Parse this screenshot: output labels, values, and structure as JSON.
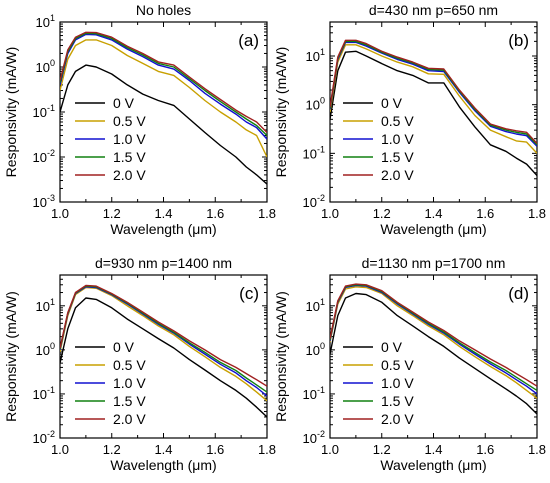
{
  "chart_data": [
    {
      "type": "line",
      "panel": "(a)",
      "title": "No holes",
      "xlabel": "Wavelength (μm)",
      "ylabel": "Responsivity (mA/W)",
      "xlim": [
        1.0,
        1.8
      ],
      "ylim": [
        0.001,
        10
      ],
      "yscale": "log",
      "xticks": [
        "1.0",
        "1.2",
        "1.4",
        "1.6",
        "1.8"
      ],
      "yticks": [
        {
          "mant": "10",
          "exp": "-3"
        },
        {
          "mant": "10",
          "exp": "-2"
        },
        {
          "mant": "10",
          "exp": "-1"
        },
        {
          "mant": "10",
          "exp": "0"
        },
        {
          "mant": "10",
          "exp": "1"
        }
      ],
      "legend": "left",
      "x": [
        1.0,
        1.03,
        1.06,
        1.1,
        1.14,
        1.2,
        1.26,
        1.32,
        1.38,
        1.44,
        1.5,
        1.56,
        1.62,
        1.68,
        1.72,
        1.76,
        1.8
      ],
      "series": [
        {
          "name": "0 V",
          "color": "#000000",
          "values": [
            0.1,
            0.4,
            0.8,
            1.1,
            1.0,
            0.7,
            0.4,
            0.25,
            0.18,
            0.14,
            0.07,
            0.035,
            0.018,
            0.01,
            0.006,
            0.004,
            0.0025
          ]
        },
        {
          "name": "0.5 V",
          "color": "#c8a000",
          "values": [
            0.3,
            1.5,
            3.0,
            4.0,
            4.0,
            3.0,
            1.8,
            1.2,
            0.8,
            0.65,
            0.35,
            0.18,
            0.1,
            0.06,
            0.04,
            0.03,
            0.01
          ]
        },
        {
          "name": "1.0 V",
          "color": "#1010d0",
          "values": [
            0.4,
            2.0,
            4.0,
            5.3,
            5.2,
            4.0,
            2.5,
            1.7,
            1.1,
            0.9,
            0.5,
            0.26,
            0.15,
            0.09,
            0.06,
            0.045,
            0.025
          ]
        },
        {
          "name": "1.5 V",
          "color": "#108010",
          "values": [
            0.45,
            2.2,
            4.3,
            5.6,
            5.5,
            4.3,
            2.7,
            1.85,
            1.2,
            1.0,
            0.55,
            0.3,
            0.17,
            0.1,
            0.07,
            0.05,
            0.03
          ]
        },
        {
          "name": "2.0 V",
          "color": "#a02020",
          "values": [
            0.5,
            2.4,
            4.6,
            5.9,
            5.8,
            4.6,
            2.9,
            2.0,
            1.3,
            1.1,
            0.6,
            0.33,
            0.19,
            0.11,
            0.08,
            0.06,
            0.035
          ]
        }
      ]
    },
    {
      "type": "line",
      "panel": "(b)",
      "title": "d=430 nm  p=650 nm",
      "xlabel": "Wavelength (μm)",
      "ylabel": "Responsivity (mA/W)",
      "xlim": [
        1.0,
        1.8
      ],
      "ylim": [
        0.01,
        50
      ],
      "yscale": "log",
      "xticks": [
        "1.0",
        "1.2",
        "1.4",
        "1.6",
        "1.8"
      ],
      "yticks": [
        {
          "mant": "10",
          "exp": "-2"
        },
        {
          "mant": "10",
          "exp": "-1"
        },
        {
          "mant": "10",
          "exp": "0"
        },
        {
          "mant": "10",
          "exp": "1"
        }
      ],
      "legend": "right",
      "x": [
        1.0,
        1.03,
        1.06,
        1.1,
        1.14,
        1.2,
        1.26,
        1.32,
        1.38,
        1.44,
        1.5,
        1.56,
        1.62,
        1.68,
        1.72,
        1.76,
        1.8
      ],
      "series": [
        {
          "name": "0 V",
          "color": "#000000",
          "values": [
            0.5,
            5.0,
            12.0,
            12.5,
            10.0,
            7.0,
            5.0,
            4.0,
            2.8,
            2.8,
            0.9,
            0.35,
            0.15,
            0.11,
            0.08,
            0.06,
            0.035
          ]
        },
        {
          "name": "0.5 V",
          "color": "#c8a000",
          "values": [
            0.7,
            7.5,
            17.0,
            17.0,
            14.0,
            10.0,
            7.5,
            6.0,
            4.3,
            4.2,
            1.5,
            0.6,
            0.3,
            0.22,
            0.18,
            0.17,
            0.1
          ]
        },
        {
          "name": "1.0 V",
          "color": "#1010d0",
          "values": [
            0.8,
            8.5,
            19.0,
            19.0,
            16.0,
            11.5,
            8.5,
            6.8,
            5.0,
            4.8,
            1.8,
            0.75,
            0.36,
            0.28,
            0.25,
            0.23,
            0.14
          ]
        },
        {
          "name": "1.5 V",
          "color": "#108010",
          "values": [
            0.85,
            9.0,
            20.0,
            20.0,
            17.0,
            12.0,
            9.0,
            7.2,
            5.3,
            5.1,
            1.9,
            0.8,
            0.38,
            0.3,
            0.27,
            0.25,
            0.15
          ]
        },
        {
          "name": "2.0 V",
          "color": "#a02020",
          "values": [
            0.9,
            9.5,
            21.0,
            21.0,
            18.0,
            12.5,
            9.5,
            7.5,
            5.6,
            5.4,
            2.0,
            0.85,
            0.4,
            0.32,
            0.29,
            0.27,
            0.16
          ]
        }
      ]
    },
    {
      "type": "line",
      "panel": "(c)",
      "title": "d=930 nm  p=1400 nm",
      "xlabel": "Wavelength (μm)",
      "ylabel": "Responsivity (mA/W)",
      "xlim": [
        1.0,
        1.8
      ],
      "ylim": [
        0.01,
        50
      ],
      "yscale": "log",
      "xticks": [
        "1.0",
        "1.2",
        "1.4",
        "1.6",
        "1.8"
      ],
      "yticks": [
        {
          "mant": "10",
          "exp": "-2"
        },
        {
          "mant": "10",
          "exp": "-1"
        },
        {
          "mant": "10",
          "exp": "0"
        },
        {
          "mant": "10",
          "exp": "1"
        }
      ],
      "legend": "right",
      "x": [
        1.0,
        1.03,
        1.06,
        1.1,
        1.14,
        1.2,
        1.26,
        1.32,
        1.38,
        1.44,
        1.5,
        1.56,
        1.62,
        1.68,
        1.72,
        1.76,
        1.8
      ],
      "series": [
        {
          "name": "0 V",
          "color": "#000000",
          "values": [
            0.5,
            3.0,
            9.0,
            15.0,
            14.0,
            9.0,
            5.0,
            3.0,
            1.8,
            1.1,
            0.6,
            0.35,
            0.2,
            0.12,
            0.08,
            0.05,
            0.03
          ]
        },
        {
          "name": "0.5 V",
          "color": "#c8a000",
          "values": [
            0.9,
            6.0,
            18.0,
            26.0,
            25.0,
            17.0,
            10.0,
            6.0,
            3.5,
            2.2,
            1.2,
            0.7,
            0.4,
            0.25,
            0.17,
            0.11,
            0.07
          ]
        },
        {
          "name": "1.0 V",
          "color": "#1010d0",
          "values": [
            1.0,
            6.5,
            19.0,
            27.0,
            26.0,
            18.0,
            11.0,
            6.5,
            3.8,
            2.4,
            1.35,
            0.8,
            0.47,
            0.3,
            0.2,
            0.14,
            0.09
          ]
        },
        {
          "name": "1.5 V",
          "color": "#108010",
          "values": [
            1.05,
            6.8,
            19.5,
            28.0,
            27.0,
            18.5,
            11.5,
            6.8,
            4.0,
            2.5,
            1.45,
            0.88,
            0.52,
            0.34,
            0.23,
            0.16,
            0.11
          ]
        },
        {
          "name": "2.0 V",
          "color": "#a02020",
          "values": [
            1.1,
            7.0,
            20.0,
            29.0,
            28.0,
            19.0,
            12.0,
            7.2,
            4.3,
            2.7,
            1.6,
            1.0,
            0.6,
            0.4,
            0.29,
            0.21,
            0.15
          ]
        }
      ]
    },
    {
      "type": "line",
      "panel": "(d)",
      "title": "d=1130 nm  p=1700 nm",
      "xlabel": "Wavelength (μm)",
      "ylabel": "Responsivity (mA/W)",
      "xlim": [
        1.0,
        1.8
      ],
      "ylim": [
        0.01,
        50
      ],
      "yscale": "log",
      "xticks": [
        "1.0",
        "1.2",
        "1.4",
        "1.6",
        "1.8"
      ],
      "yticks": [
        {
          "mant": "10",
          "exp": "-2"
        },
        {
          "mant": "10",
          "exp": "-1"
        },
        {
          "mant": "10",
          "exp": "0"
        },
        {
          "mant": "10",
          "exp": "1"
        }
      ],
      "legend": "right",
      "x": [
        1.0,
        1.03,
        1.06,
        1.1,
        1.14,
        1.2,
        1.26,
        1.32,
        1.38,
        1.44,
        1.5,
        1.56,
        1.62,
        1.68,
        1.72,
        1.76,
        1.8
      ],
      "series": [
        {
          "name": "0 V",
          "color": "#000000",
          "values": [
            0.8,
            6.0,
            15.0,
            19.0,
            18.0,
            12.0,
            6.0,
            3.5,
            2.0,
            1.2,
            0.65,
            0.38,
            0.22,
            0.13,
            0.09,
            0.06,
            0.035
          ]
        },
        {
          "name": "0.5 V",
          "color": "#c8a000",
          "values": [
            1.5,
            11.0,
            24.0,
            27.0,
            26.0,
            19.0,
            10.0,
            6.0,
            3.5,
            2.2,
            1.2,
            0.7,
            0.42,
            0.26,
            0.18,
            0.12,
            0.08
          ]
        },
        {
          "name": "1.0 V",
          "color": "#1010d0",
          "values": [
            1.6,
            12.0,
            26.0,
            29.0,
            28.0,
            20.0,
            11.0,
            6.5,
            3.8,
            2.4,
            1.35,
            0.8,
            0.48,
            0.3,
            0.21,
            0.15,
            0.1
          ]
        },
        {
          "name": "1.5 V",
          "color": "#108010",
          "values": [
            1.7,
            12.5,
            27.0,
            30.0,
            29.0,
            21.0,
            11.5,
            6.8,
            4.0,
            2.55,
            1.45,
            0.87,
            0.53,
            0.34,
            0.24,
            0.17,
            0.12
          ]
        },
        {
          "name": "2.0 V",
          "color": "#a02020",
          "values": [
            1.8,
            13.0,
            28.0,
            31.0,
            30.0,
            22.0,
            12.0,
            7.2,
            4.3,
            2.75,
            1.6,
            1.0,
            0.62,
            0.4,
            0.29,
            0.21,
            0.15
          ]
        }
      ]
    }
  ]
}
